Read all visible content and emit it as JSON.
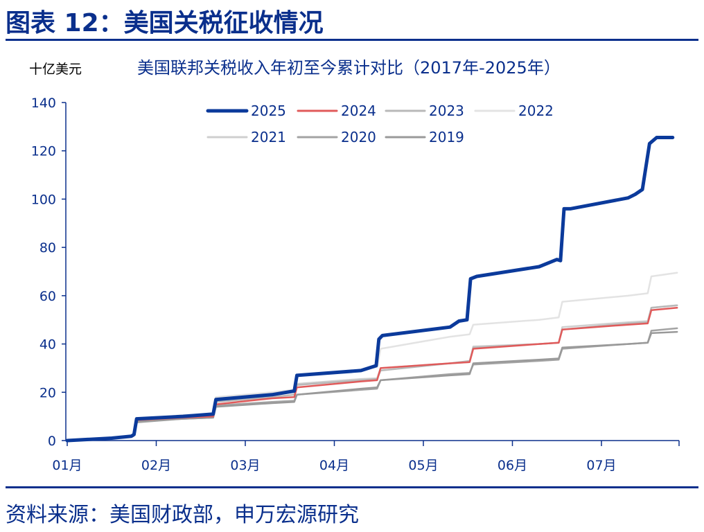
{
  "figure": {
    "title": "图表 12：美国关税征收情况",
    "source": "资料来源：美国财政部，申万宏源研究"
  },
  "chart_data": {
    "type": "line",
    "unit_label": "十亿美元",
    "title": "美国联邦关税收入年初至今累计对比（2017年-2025年）",
    "xlabel": "",
    "ylabel": "",
    "ylim": [
      0,
      140
    ],
    "yticks": [
      "0",
      "20",
      "40",
      "60",
      "80",
      "100",
      "120",
      "140"
    ],
    "x_tick_labels": [
      "01月",
      "02月",
      "03月",
      "04月",
      "05月",
      "06月",
      "07月"
    ],
    "x_unit": "month",
    "xlim": [
      1,
      7.85
    ],
    "grid": false,
    "legend_position": "top",
    "series": [
      {
        "name": "2021",
        "color": "#cfcfcf",
        "width": 2.5,
        "points": [
          [
            1,
            0
          ],
          [
            1.5,
            1
          ],
          [
            1.74,
            1.8
          ],
          [
            1.77,
            8.5
          ],
          [
            2.3,
            10
          ],
          [
            2.64,
            10.5
          ],
          [
            2.67,
            17.5
          ],
          [
            3.3,
            19.5
          ],
          [
            3.55,
            20
          ],
          [
            3.58,
            23.5
          ],
          [
            4.3,
            25.5
          ],
          [
            4.48,
            25.8
          ],
          [
            4.52,
            30
          ],
          [
            5.3,
            32
          ],
          [
            5.52,
            32.5
          ],
          [
            5.56,
            39
          ],
          [
            6.3,
            40
          ],
          [
            6.52,
            40.5
          ],
          [
            6.56,
            47
          ],
          [
            7.3,
            49
          ],
          [
            7.52,
            49.5
          ],
          [
            7.56,
            55
          ],
          [
            7.85,
            56
          ]
        ]
      },
      {
        "name": "2022",
        "color": "#e3e3e3",
        "width": 2.5,
        "points": [
          [
            1,
            0
          ],
          [
            1.5,
            1
          ],
          [
            1.74,
            1.8
          ],
          [
            1.77,
            9
          ],
          [
            2.3,
            10.5
          ],
          [
            2.64,
            11
          ],
          [
            2.67,
            18
          ],
          [
            3.3,
            20
          ],
          [
            3.55,
            21
          ],
          [
            3.58,
            27
          ],
          [
            4.3,
            29
          ],
          [
            4.48,
            30.5
          ],
          [
            4.52,
            38
          ],
          [
            5.3,
            43
          ],
          [
            5.52,
            44
          ],
          [
            5.56,
            48
          ],
          [
            6.3,
            50
          ],
          [
            6.52,
            51
          ],
          [
            6.56,
            57.5
          ],
          [
            7.3,
            60
          ],
          [
            7.52,
            61
          ],
          [
            7.56,
            68
          ],
          [
            7.85,
            69.5
          ]
        ]
      },
      {
        "name": "2023",
        "color": "#b8b8b8",
        "width": 2.5,
        "points": [
          [
            1,
            0
          ],
          [
            1.5,
            1
          ],
          [
            1.74,
            1.8
          ],
          [
            1.77,
            8
          ],
          [
            2.3,
            9.5
          ],
          [
            2.64,
            10
          ],
          [
            2.67,
            16
          ],
          [
            3.3,
            18
          ],
          [
            3.55,
            19
          ],
          [
            3.58,
            23
          ],
          [
            4.3,
            25
          ],
          [
            4.48,
            25.5
          ],
          [
            4.52,
            29
          ],
          [
            5.3,
            32
          ],
          [
            5.52,
            33
          ],
          [
            5.56,
            38.5
          ],
          [
            6.3,
            40
          ],
          [
            6.52,
            40.5
          ],
          [
            6.56,
            46
          ],
          [
            7.3,
            48.5
          ],
          [
            7.52,
            49
          ],
          [
            7.56,
            55
          ],
          [
            7.85,
            56
          ]
        ]
      },
      {
        "name": "2020",
        "color": "#a3a3a3",
        "width": 2.5,
        "points": [
          [
            1,
            0
          ],
          [
            1.5,
            1
          ],
          [
            1.74,
            1.8
          ],
          [
            1.77,
            7.5
          ],
          [
            2.3,
            9
          ],
          [
            2.64,
            9.5
          ],
          [
            2.67,
            14.5
          ],
          [
            3.3,
            16
          ],
          [
            3.55,
            16.5
          ],
          [
            3.58,
            19
          ],
          [
            4.3,
            21
          ],
          [
            4.48,
            21.5
          ],
          [
            4.52,
            25
          ],
          [
            5.3,
            27.5
          ],
          [
            5.52,
            28
          ],
          [
            5.56,
            31.5
          ],
          [
            6.3,
            33
          ],
          [
            6.52,
            33.5
          ],
          [
            6.56,
            38
          ],
          [
            7.3,
            40
          ],
          [
            7.52,
            40.5
          ],
          [
            7.56,
            45.5
          ],
          [
            7.85,
            46.5
          ]
        ]
      },
      {
        "name": "2019",
        "color": "#999999",
        "width": 2.5,
        "points": [
          [
            1,
            0
          ],
          [
            1.5,
            1
          ],
          [
            1.74,
            1.8
          ],
          [
            1.77,
            8
          ],
          [
            2.3,
            9
          ],
          [
            2.64,
            9.5
          ],
          [
            2.67,
            14
          ],
          [
            3.3,
            15.5
          ],
          [
            3.55,
            16
          ],
          [
            3.58,
            19
          ],
          [
            4.3,
            21.5
          ],
          [
            4.48,
            22
          ],
          [
            4.52,
            25
          ],
          [
            5.3,
            27
          ],
          [
            5.52,
            27.5
          ],
          [
            5.56,
            32
          ],
          [
            6.3,
            33.5
          ],
          [
            6.52,
            34
          ],
          [
            6.56,
            38.5
          ],
          [
            7.3,
            40
          ],
          [
            7.52,
            40.5
          ],
          [
            7.56,
            44.5
          ],
          [
            7.85,
            45
          ]
        ]
      },
      {
        "name": "2024",
        "color": "#e05a5a",
        "width": 2.5,
        "points": [
          [
            1,
            0
          ],
          [
            1.5,
            1
          ],
          [
            1.74,
            1.8
          ],
          [
            1.77,
            8.5
          ],
          [
            2.3,
            9.5
          ],
          [
            2.64,
            10
          ],
          [
            2.67,
            15
          ],
          [
            3.3,
            17.5
          ],
          [
            3.55,
            18
          ],
          [
            3.58,
            22
          ],
          [
            4.3,
            24.5
          ],
          [
            4.48,
            25
          ],
          [
            4.52,
            30
          ],
          [
            5.3,
            32
          ],
          [
            5.52,
            32.5
          ],
          [
            5.56,
            38
          ],
          [
            6.3,
            40
          ],
          [
            6.52,
            40.5
          ],
          [
            6.56,
            46
          ],
          [
            7.3,
            48
          ],
          [
            7.52,
            48.5
          ],
          [
            7.56,
            54
          ],
          [
            7.85,
            55
          ]
        ]
      },
      {
        "name": "2025",
        "color": "#0b3a9b",
        "width": 5,
        "points": [
          [
            1,
            0
          ],
          [
            1.5,
            1
          ],
          [
            1.72,
            1.8
          ],
          [
            1.75,
            2.5
          ],
          [
            1.78,
            9
          ],
          [
            2.3,
            10
          ],
          [
            2.64,
            11
          ],
          [
            2.67,
            17
          ],
          [
            3.3,
            19
          ],
          [
            3.55,
            20.5
          ],
          [
            3.58,
            27
          ],
          [
            4.3,
            29
          ],
          [
            4.47,
            31
          ],
          [
            4.5,
            42
          ],
          [
            4.54,
            43.5
          ],
          [
            5.3,
            47
          ],
          [
            5.4,
            49.5
          ],
          [
            5.49,
            50
          ],
          [
            5.53,
            67
          ],
          [
            5.6,
            68
          ],
          [
            6.3,
            72
          ],
          [
            6.5,
            75
          ],
          [
            6.54,
            74.5
          ],
          [
            6.58,
            96
          ],
          [
            6.65,
            96
          ],
          [
            7.3,
            100.5
          ],
          [
            7.38,
            102
          ],
          [
            7.46,
            104
          ],
          [
            7.54,
            123
          ],
          [
            7.62,
            125.5
          ],
          [
            7.8,
            125.5
          ]
        ]
      }
    ],
    "legend_order": [
      "2025",
      "2024",
      "2023",
      "2022",
      "2021",
      "2020",
      "2019"
    ]
  }
}
